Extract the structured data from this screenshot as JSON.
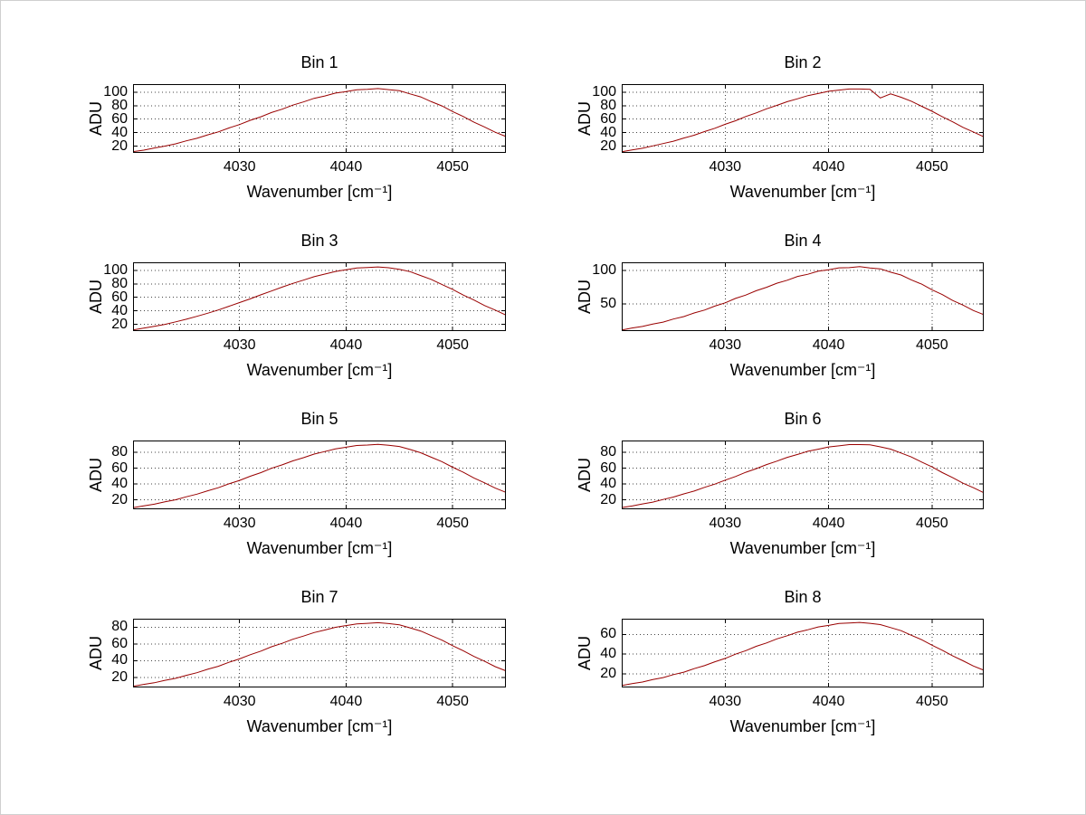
{
  "figure": {
    "background": "#ffffff"
  },
  "chart_data": {
    "type": "line",
    "layout": {
      "rows": 4,
      "cols": 2
    },
    "x_label": "Wavenumber [cm⁻¹]",
    "y_label": "ADU",
    "x_ticks": [
      4030,
      4040,
      4050
    ],
    "xlim": [
      4020,
      4055
    ],
    "x_start": 4020,
    "x_step": 1,
    "grid": "dotted",
    "legend": "none",
    "line_color": "#990000",
    "subplots": [
      {
        "title": "Bin 1",
        "y_ticks": [
          20,
          40,
          60,
          80,
          100
        ],
        "ylim": [
          10,
          112
        ],
        "values": [
          11.9,
          14.0,
          17.3,
          20.0,
          23.4,
          27.8,
          31.6,
          36.7,
          41.2,
          46.9,
          52.0,
          58.3,
          63.5,
          69.8,
          74.8,
          80.9,
          85.5,
          90.9,
          94.4,
          98.7,
          100.9,
          103.7,
          104.2,
          105.4,
          103.8,
          102.2,
          97.5,
          93.1,
          86.0,
          79.6,
          71.3,
          64.0,
          55.5,
          48.4,
          40.6,
          34.3
        ]
      },
      {
        "title": "Bin 2",
        "y_ticks": [
          20,
          40,
          60,
          80,
          100
        ],
        "ylim": [
          10,
          112
        ],
        "values": [
          11.6,
          14.4,
          16.8,
          20.3,
          23.8,
          27.3,
          32.0,
          36.2,
          41.6,
          46.5,
          52.4,
          57.7,
          63.9,
          69.3,
          75.3,
          80.4,
          86.0,
          90.3,
          94.9,
          98.1,
          101.4,
          103.1,
          104.8,
          104.7,
          104.4,
          91.5,
          97.5,
          92.5,
          86.6,
          79.1,
          71.8,
          63.5,
          56.0,
          47.9,
          41.0,
          33.9
        ]
      },
      {
        "title": "Bin 3",
        "y_ticks": [
          20,
          40,
          60,
          80,
          100
        ],
        "ylim": [
          10,
          112
        ],
        "values": [
          11.7,
          14.3,
          17.1,
          19.9,
          23.7,
          27.6,
          31.9,
          36.5,
          41.3,
          46.8,
          52.3,
          57.8,
          63.8,
          69.4,
          75.2,
          80.7,
          85.6,
          90.7,
          94.5,
          98.5,
          101.0,
          103.5,
          104.4,
          105.2,
          104.0,
          101.6,
          98.2,
          92.4,
          86.7,
          79.0,
          71.9,
          63.4,
          56.1,
          47.8,
          41.1,
          33.8
        ]
      },
      {
        "title": "Bin 4",
        "y_ticks": [
          50,
          100
        ],
        "ylim": [
          10,
          112
        ],
        "values": [
          11.5,
          14.5,
          16.9,
          20.4,
          23.3,
          27.9,
          31.5,
          36.8,
          41.1,
          47.0,
          51.9,
          58.4,
          63.4,
          69.9,
          74.9,
          81.0,
          85.4,
          91.0,
          94.3,
          98.8,
          100.8,
          103.8,
          104.1,
          105.5,
          103.7,
          102.3,
          97.4,
          93.2,
          85.9,
          79.7,
          71.2,
          64.1,
          55.4,
          48.5,
          40.5,
          34.4
        ]
      },
      {
        "title": "Bin 5",
        "y_ticks": [
          20,
          40,
          60,
          80
        ],
        "ylim": [
          8,
          95
        ],
        "values": [
          10.0,
          12.4,
          14.4,
          17.4,
          20.0,
          23.8,
          27.1,
          31.4,
          35.3,
          40.2,
          44.5,
          49.8,
          54.4,
          59.8,
          64.2,
          69.3,
          73.3,
          77.8,
          81.0,
          84.4,
          86.5,
          88.7,
          89.3,
          90.2,
          89.0,
          87.4,
          83.7,
          79.6,
          73.8,
          68.2,
          61.2,
          54.8,
          47.6,
          41.4,
          34.8,
          29.4
        ]
      },
      {
        "title": "Bin 6",
        "y_ticks": [
          20,
          40,
          60,
          80
        ],
        "ylim": [
          8,
          95
        ],
        "values": [
          10.2,
          12.1,
          14.8,
          17.0,
          20.4,
          23.4,
          27.5,
          31.0,
          35.7,
          39.8,
          44.9,
          49.4,
          54.8,
          59.4,
          64.6,
          68.9,
          73.7,
          77.4,
          81.4,
          84.0,
          86.9,
          88.3,
          89.8,
          89.8,
          89.5,
          87.0,
          84.1,
          79.2,
          74.2,
          67.8,
          61.6,
          54.4,
          48.0,
          41.0,
          35.2,
          29.0
        ]
      },
      {
        "title": "Bin 7",
        "y_ticks": [
          20,
          40,
          60,
          80
        ],
        "ylim": [
          8,
          90
        ],
        "values": [
          9.4,
          11.7,
          13.6,
          16.5,
          18.9,
          22.5,
          25.6,
          29.7,
          33.3,
          38.0,
          42.1,
          47.1,
          51.4,
          56.5,
          60.6,
          65.5,
          69.3,
          73.5,
          76.5,
          79.8,
          81.8,
          83.9,
          84.5,
          85.2,
          84.2,
          82.7,
          79.1,
          75.3,
          69.8,
          64.4,
          57.8,
          51.8,
          45.0,
          39.2,
          32.8,
          27.8
        ]
      },
      {
        "title": "Bin 8",
        "y_ticks": [
          20,
          40,
          60
        ],
        "ylim": [
          6,
          76
        ],
        "values": [
          7.9,
          9.9,
          11.5,
          14.0,
          16.0,
          19.1,
          21.6,
          25.2,
          28.2,
          32.2,
          35.6,
          39.9,
          43.5,
          47.9,
          51.3,
          55.5,
          58.7,
          62.3,
          64.8,
          67.6,
          69.2,
          71.1,
          71.6,
          72.2,
          71.3,
          70.0,
          67.0,
          63.8,
          59.1,
          54.6,
          49.0,
          43.9,
          38.1,
          33.2,
          27.8,
          23.6
        ]
      }
    ]
  }
}
